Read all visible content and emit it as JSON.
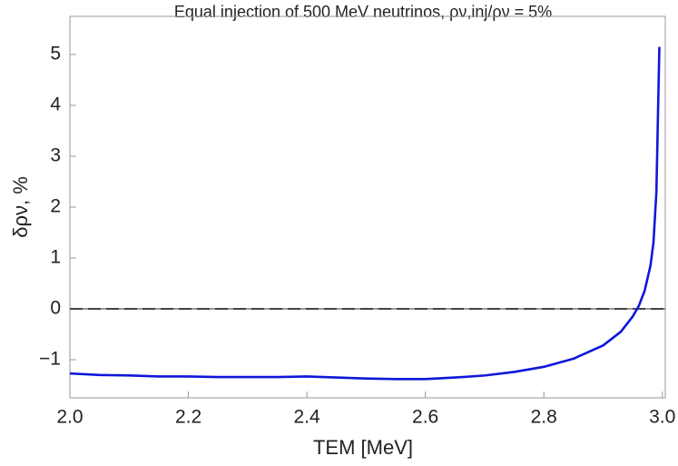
{
  "chart_data": {
    "type": "line",
    "title": "Equal injection of 500 MeV neutrinos, ρν,inj/ρν = 5%",
    "xlabel": "TEM [MeV]",
    "ylabel": "δρν, %",
    "x": [
      2.0,
      2.05,
      2.1,
      2.15,
      2.2,
      2.25,
      2.3,
      2.35,
      2.4,
      2.45,
      2.5,
      2.55,
      2.6,
      2.65,
      2.7,
      2.75,
      2.8,
      2.85,
      2.9,
      2.93,
      2.95,
      2.96,
      2.97,
      2.98,
      2.985,
      2.99,
      2.995
    ],
    "series": [
      {
        "name": "δρν",
        "color": "#0f17d9",
        "values": [
          -1.27,
          -1.3,
          -1.31,
          -1.33,
          -1.33,
          -1.34,
          -1.34,
          -1.34,
          -1.33,
          -1.35,
          -1.37,
          -1.38,
          -1.38,
          -1.35,
          -1.31,
          -1.24,
          -1.14,
          -0.98,
          -0.72,
          -0.45,
          -0.15,
          0.05,
          0.35,
          0.85,
          1.3,
          2.3,
          5.15
        ]
      }
    ],
    "hline": 0,
    "xlim": [
      2.0,
      3.005
    ],
    "ylim": [
      -1.75,
      5.75
    ],
    "xticks": [
      {
        "value": 2.0,
        "label": "2.0"
      },
      {
        "value": 2.2,
        "label": "2.2"
      },
      {
        "value": 2.4,
        "label": "2.4"
      },
      {
        "value": 2.6,
        "label": "2.6"
      },
      {
        "value": 2.8,
        "label": "2.8"
      },
      {
        "value": 3.0,
        "label": "3.0"
      }
    ],
    "yticks": [
      {
        "value": -1,
        "label": "−1"
      },
      0,
      1,
      2,
      3,
      4,
      5
    ]
  }
}
